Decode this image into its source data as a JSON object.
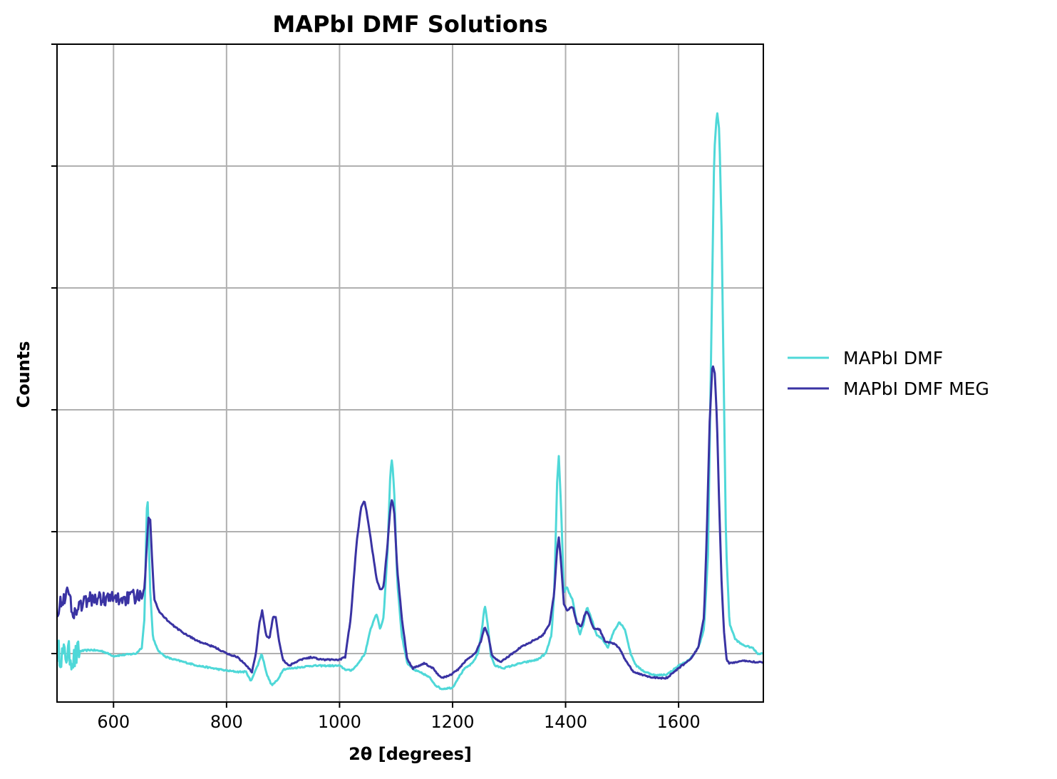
{
  "chart_data": {
    "type": "line",
    "title": "MAPbI DMF Solutions",
    "xlabel": "2θ [degrees]",
    "ylabel": "Counts",
    "xlim": [
      500,
      1750
    ],
    "ylim": [
      -0.4,
      5.0
    ],
    "xticks": [
      600,
      800,
      1000,
      1200,
      1400,
      1600
    ],
    "yticks": [
      0,
      1,
      2,
      3,
      4,
      5
    ],
    "y_tick_labels_shown": false,
    "grid": true,
    "legend": {
      "placement": "outside-right"
    },
    "series": [
      {
        "name": "MAPbI DMF",
        "color": "#4fd8d8",
        "noise_start": 500,
        "noise_end": 540,
        "noise_amplitude": 0.11,
        "points": [
          [
            500,
            0.02
          ],
          [
            510,
            -0.02
          ],
          [
            520,
            0.0
          ],
          [
            530,
            -0.05
          ],
          [
            540,
            0.02
          ],
          [
            560,
            0.03
          ],
          [
            580,
            0.02
          ],
          [
            600,
            -0.02
          ],
          [
            620,
            -0.01
          ],
          [
            640,
            0.0
          ],
          [
            650,
            0.05
          ],
          [
            655,
            0.3
          ],
          [
            658,
            1.05
          ],
          [
            660,
            1.33
          ],
          [
            662,
            1.0
          ],
          [
            665,
            0.5
          ],
          [
            670,
            0.12
          ],
          [
            680,
            0.02
          ],
          [
            690,
            -0.02
          ],
          [
            700,
            -0.04
          ],
          [
            750,
            -0.1
          ],
          [
            800,
            -0.14
          ],
          [
            820,
            -0.15
          ],
          [
            835,
            -0.15
          ],
          [
            843,
            -0.23
          ],
          [
            848,
            -0.17
          ],
          [
            855,
            -0.1
          ],
          [
            862,
            0.0
          ],
          [
            866,
            -0.07
          ],
          [
            872,
            -0.18
          ],
          [
            880,
            -0.26
          ],
          [
            890,
            -0.22
          ],
          [
            900,
            -0.13
          ],
          [
            950,
            -0.1
          ],
          [
            1000,
            -0.1
          ],
          [
            1010,
            -0.13
          ],
          [
            1020,
            -0.14
          ],
          [
            1030,
            -0.1
          ],
          [
            1045,
            0.0
          ],
          [
            1055,
            0.2
          ],
          [
            1065,
            0.33
          ],
          [
            1072,
            0.2
          ],
          [
            1078,
            0.3
          ],
          [
            1085,
            0.85
          ],
          [
            1090,
            1.5
          ],
          [
            1093,
            1.6
          ],
          [
            1097,
            1.3
          ],
          [
            1102,
            0.6
          ],
          [
            1110,
            0.15
          ],
          [
            1120,
            -0.08
          ],
          [
            1130,
            -0.13
          ],
          [
            1140,
            -0.15
          ],
          [
            1150,
            -0.17
          ],
          [
            1160,
            -0.2
          ],
          [
            1170,
            -0.26
          ],
          [
            1180,
            -0.29
          ],
          [
            1200,
            -0.28
          ],
          [
            1210,
            -0.2
          ],
          [
            1220,
            -0.13
          ],
          [
            1235,
            -0.08
          ],
          [
            1245,
            0.0
          ],
          [
            1252,
            0.2
          ],
          [
            1257,
            0.4
          ],
          [
            1262,
            0.25
          ],
          [
            1268,
            -0.02
          ],
          [
            1275,
            -0.1
          ],
          [
            1290,
            -0.12
          ],
          [
            1320,
            -0.08
          ],
          [
            1350,
            -0.05
          ],
          [
            1365,
            0.0
          ],
          [
            1375,
            0.15
          ],
          [
            1380,
            0.5
          ],
          [
            1385,
            1.4
          ],
          [
            1388,
            1.62
          ],
          [
            1392,
            1.2
          ],
          [
            1397,
            0.5
          ],
          [
            1402,
            0.55
          ],
          [
            1408,
            0.48
          ],
          [
            1412,
            0.45
          ],
          [
            1418,
            0.3
          ],
          [
            1425,
            0.15
          ],
          [
            1432,
            0.25
          ],
          [
            1438,
            0.38
          ],
          [
            1445,
            0.3
          ],
          [
            1455,
            0.15
          ],
          [
            1465,
            0.12
          ],
          [
            1475,
            0.05
          ],
          [
            1485,
            0.18
          ],
          [
            1495,
            0.26
          ],
          [
            1505,
            0.2
          ],
          [
            1515,
            0.0
          ],
          [
            1525,
            -0.1
          ],
          [
            1540,
            -0.15
          ],
          [
            1560,
            -0.18
          ],
          [
            1580,
            -0.17
          ],
          [
            1600,
            -0.1
          ],
          [
            1620,
            -0.05
          ],
          [
            1635,
            0.05
          ],
          [
            1645,
            0.2
          ],
          [
            1652,
            0.8
          ],
          [
            1658,
            2.6
          ],
          [
            1663,
            4.1
          ],
          [
            1668,
            4.45
          ],
          [
            1672,
            4.3
          ],
          [
            1676,
            3.5
          ],
          [
            1680,
            2.2
          ],
          [
            1684,
            0.9
          ],
          [
            1690,
            0.25
          ],
          [
            1700,
            0.12
          ],
          [
            1710,
            0.08
          ],
          [
            1720,
            0.06
          ],
          [
            1730,
            0.05
          ],
          [
            1740,
            0.0
          ],
          [
            1750,
            0.0
          ]
        ]
      },
      {
        "name": "MAPbI DMF MEG",
        "color": "#3a33a3",
        "noise_start": 500,
        "noise_end": 650,
        "noise_amplitude": 0.06,
        "points": [
          [
            500,
            0.35
          ],
          [
            510,
            0.45
          ],
          [
            520,
            0.5
          ],
          [
            530,
            0.32
          ],
          [
            540,
            0.4
          ],
          [
            560,
            0.45
          ],
          [
            580,
            0.45
          ],
          [
            600,
            0.45
          ],
          [
            620,
            0.45
          ],
          [
            640,
            0.47
          ],
          [
            650,
            0.45
          ],
          [
            655,
            0.55
          ],
          [
            659,
            0.9
          ],
          [
            662,
            1.12
          ],
          [
            665,
            1.1
          ],
          [
            668,
            0.8
          ],
          [
            672,
            0.45
          ],
          [
            680,
            0.35
          ],
          [
            700,
            0.25
          ],
          [
            720,
            0.18
          ],
          [
            750,
            0.1
          ],
          [
            780,
            0.05
          ],
          [
            800,
            0.0
          ],
          [
            820,
            -0.03
          ],
          [
            835,
            -0.1
          ],
          [
            845,
            -0.15
          ],
          [
            852,
            0.0
          ],
          [
            858,
            0.25
          ],
          [
            863,
            0.35
          ],
          [
            870,
            0.15
          ],
          [
            876,
            0.12
          ],
          [
            882,
            0.3
          ],
          [
            887,
            0.3
          ],
          [
            893,
            0.1
          ],
          [
            900,
            -0.05
          ],
          [
            910,
            -0.1
          ],
          [
            930,
            -0.05
          ],
          [
            950,
            -0.03
          ],
          [
            970,
            -0.05
          ],
          [
            1000,
            -0.05
          ],
          [
            1010,
            -0.03
          ],
          [
            1020,
            0.3
          ],
          [
            1030,
            0.9
          ],
          [
            1038,
            1.2
          ],
          [
            1044,
            1.26
          ],
          [
            1050,
            1.1
          ],
          [
            1058,
            0.85
          ],
          [
            1066,
            0.6
          ],
          [
            1072,
            0.52
          ],
          [
            1078,
            0.55
          ],
          [
            1085,
            0.9
          ],
          [
            1090,
            1.2
          ],
          [
            1093,
            1.27
          ],
          [
            1097,
            1.15
          ],
          [
            1102,
            0.7
          ],
          [
            1110,
            0.3
          ],
          [
            1120,
            -0.05
          ],
          [
            1130,
            -0.12
          ],
          [
            1150,
            -0.08
          ],
          [
            1165,
            -0.12
          ],
          [
            1180,
            -0.2
          ],
          [
            1195,
            -0.18
          ],
          [
            1210,
            -0.13
          ],
          [
            1225,
            -0.05
          ],
          [
            1240,
            0.0
          ],
          [
            1250,
            0.1
          ],
          [
            1257,
            0.22
          ],
          [
            1263,
            0.15
          ],
          [
            1270,
            -0.02
          ],
          [
            1285,
            -0.07
          ],
          [
            1300,
            -0.02
          ],
          [
            1320,
            0.05
          ],
          [
            1340,
            0.1
          ],
          [
            1360,
            0.15
          ],
          [
            1372,
            0.25
          ],
          [
            1380,
            0.5
          ],
          [
            1385,
            0.85
          ],
          [
            1388,
            0.95
          ],
          [
            1392,
            0.75
          ],
          [
            1397,
            0.4
          ],
          [
            1403,
            0.35
          ],
          [
            1408,
            0.38
          ],
          [
            1413,
            0.38
          ],
          [
            1420,
            0.25
          ],
          [
            1428,
            0.22
          ],
          [
            1434,
            0.32
          ],
          [
            1438,
            0.35
          ],
          [
            1442,
            0.3
          ],
          [
            1450,
            0.2
          ],
          [
            1460,
            0.2
          ],
          [
            1470,
            0.1
          ],
          [
            1485,
            0.08
          ],
          [
            1495,
            0.05
          ],
          [
            1505,
            -0.05
          ],
          [
            1520,
            -0.15
          ],
          [
            1540,
            -0.18
          ],
          [
            1560,
            -0.2
          ],
          [
            1580,
            -0.2
          ],
          [
            1600,
            -0.12
          ],
          [
            1620,
            -0.05
          ],
          [
            1635,
            0.05
          ],
          [
            1645,
            0.3
          ],
          [
            1650,
            1.0
          ],
          [
            1655,
            1.9
          ],
          [
            1660,
            2.38
          ],
          [
            1664,
            2.3
          ],
          [
            1668,
            1.9
          ],
          [
            1672,
            1.2
          ],
          [
            1676,
            0.6
          ],
          [
            1680,
            0.2
          ],
          [
            1685,
            -0.05
          ],
          [
            1690,
            -0.08
          ],
          [
            1700,
            -0.07
          ],
          [
            1720,
            -0.06
          ],
          [
            1740,
            -0.07
          ],
          [
            1750,
            -0.07
          ]
        ]
      }
    ]
  }
}
